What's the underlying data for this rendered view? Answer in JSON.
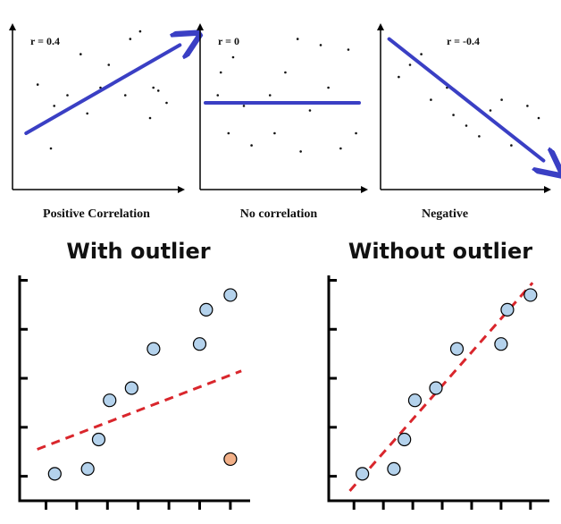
{
  "chart_data": [
    {
      "type": "scatter",
      "annotation": "r =  0.4",
      "xlabel": "Positive Correlation",
      "points": [
        [
          0.12,
          0.62
        ],
        [
          0.2,
          0.2
        ],
        [
          0.22,
          0.48
        ],
        [
          0.3,
          0.55
        ],
        [
          0.38,
          0.82
        ],
        [
          0.42,
          0.43
        ],
        [
          0.5,
          0.6
        ],
        [
          0.55,
          0.75
        ],
        [
          0.65,
          0.55
        ],
        [
          0.68,
          0.92
        ],
        [
          0.74,
          0.97
        ],
        [
          0.8,
          0.4
        ],
        [
          0.82,
          0.6
        ],
        [
          0.85,
          0.58
        ],
        [
          0.9,
          0.5
        ]
      ],
      "trend": [
        [
          0.05,
          0.3
        ],
        [
          0.98,
          0.88
        ]
      ]
    },
    {
      "type": "scatter",
      "annotation": "r = 0",
      "xlabel": "No correlation",
      "points": [
        [
          0.08,
          0.55
        ],
        [
          0.1,
          0.7
        ],
        [
          0.15,
          0.3
        ],
        [
          0.18,
          0.8
        ],
        [
          0.25,
          0.48
        ],
        [
          0.3,
          0.22
        ],
        [
          0.42,
          0.55
        ],
        [
          0.45,
          0.3
        ],
        [
          0.52,
          0.7
        ],
        [
          0.6,
          0.92
        ],
        [
          0.62,
          0.18
        ],
        [
          0.68,
          0.45
        ],
        [
          0.75,
          0.88
        ],
        [
          0.8,
          0.6
        ],
        [
          0.88,
          0.2
        ],
        [
          0.93,
          0.85
        ],
        [
          0.98,
          0.3
        ]
      ],
      "trend": [
        [
          0,
          0.5
        ],
        [
          1,
          0.5
        ]
      ]
    },
    {
      "type": "scatter",
      "annotation": "r = -0.4",
      "xlabel": "Negative",
      "points": [
        [
          0.08,
          0.67
        ],
        [
          0.15,
          0.75
        ],
        [
          0.22,
          0.82
        ],
        [
          0.28,
          0.52
        ],
        [
          0.38,
          0.6
        ],
        [
          0.42,
          0.42
        ],
        [
          0.5,
          0.35
        ],
        [
          0.58,
          0.28
        ],
        [
          0.65,
          0.45
        ],
        [
          0.72,
          0.52
        ],
        [
          0.78,
          0.22
        ],
        [
          0.88,
          0.48
        ],
        [
          0.95,
          0.4
        ]
      ],
      "trend": [
        [
          0.02,
          0.92
        ],
        [
          0.98,
          0.12
        ]
      ]
    },
    {
      "type": "scatter",
      "title": "With outlier",
      "points": [
        [
          1.6,
          0.55
        ],
        [
          3.1,
          0.65
        ],
        [
          3.6,
          1.25
        ],
        [
          4.1,
          2.05
        ],
        [
          5.1,
          2.3
        ],
        [
          6.1,
          3.1
        ],
        [
          8.2,
          3.2
        ],
        [
          8.5,
          3.9
        ],
        [
          9.6,
          4.2
        ]
      ],
      "outlier": [
        9.6,
        0.85
      ],
      "trend": [
        [
          0.8,
          1.05
        ],
        [
          10.1,
          2.65
        ]
      ],
      "xlim": [
        0,
        10.5
      ],
      "ylim": [
        0,
        4.6
      ],
      "xticks": [
        1.2,
        2.6,
        4.0,
        5.4,
        6.8,
        8.2,
        9.6
      ],
      "yticks": [
        0.5,
        1.5,
        2.5,
        3.5,
        4.5
      ]
    },
    {
      "type": "scatter",
      "title": "Without outlier",
      "points": [
        [
          1.6,
          0.55
        ],
        [
          3.1,
          0.65
        ],
        [
          3.6,
          1.25
        ],
        [
          4.1,
          2.05
        ],
        [
          5.1,
          2.3
        ],
        [
          6.1,
          3.1
        ],
        [
          8.2,
          3.2
        ],
        [
          8.5,
          3.9
        ],
        [
          9.6,
          4.2
        ]
      ],
      "trend": [
        [
          1.0,
          0.2
        ],
        [
          9.7,
          4.45
        ]
      ],
      "xlim": [
        0,
        10.5
      ],
      "ylim": [
        0,
        4.6
      ],
      "xticks": [
        1.2,
        2.6,
        4.0,
        5.4,
        6.8,
        8.2,
        9.6
      ],
      "yticks": [
        0.5,
        1.5,
        2.5,
        3.5,
        4.5
      ]
    }
  ],
  "colors": {
    "arrow": "#3a3fc4",
    "dashed_trend": "#d9262c",
    "point_fill": "#b4d2ec",
    "outlier_fill": "#f2b088",
    "axis": "#000000"
  }
}
